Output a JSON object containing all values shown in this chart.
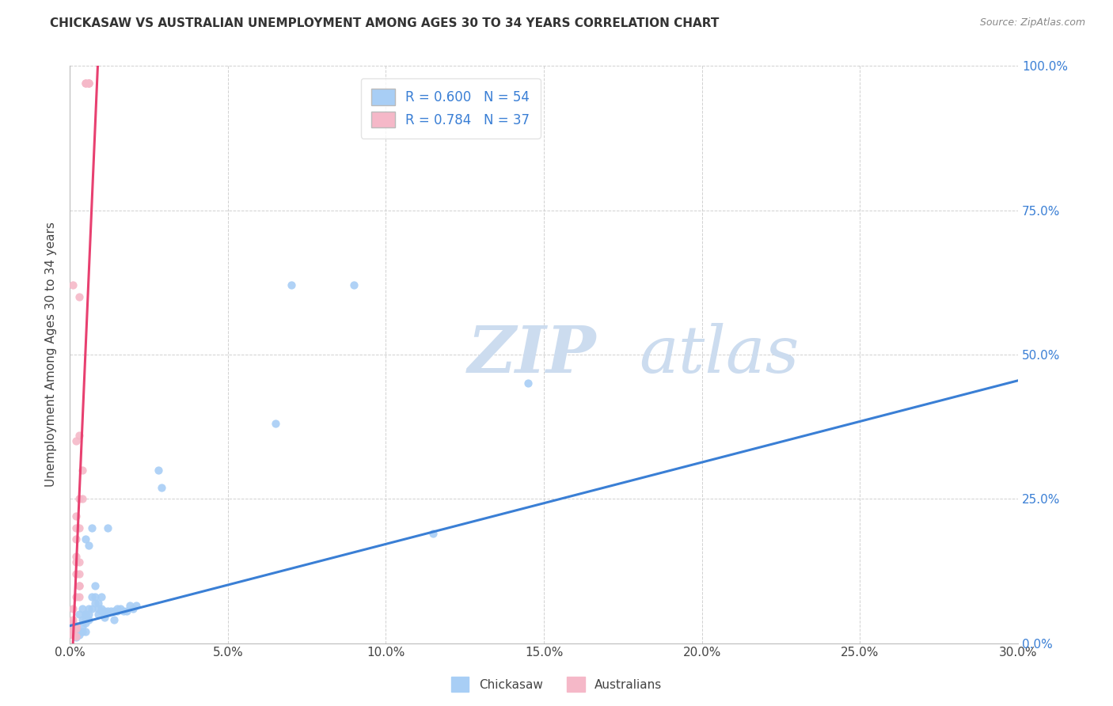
{
  "title": "CHICKASAW VS AUSTRALIAN UNEMPLOYMENT AMONG AGES 30 TO 34 YEARS CORRELATION CHART",
  "source": "Source: ZipAtlas.com",
  "xlabel_ticks": [
    "0.0%",
    "5.0%",
    "10.0%",
    "15.0%",
    "20.0%",
    "25.0%",
    "30.0%"
  ],
  "ylabel_ticks": [
    "0.0%",
    "25.0%",
    "50.0%",
    "75.0%",
    "100.0%"
  ],
  "ylabel_label": "Unemployment Among Ages 30 to 34 years",
  "legend_label1": "Chickasaw",
  "legend_label2": "Australians",
  "R1": "0.600",
  "N1": "54",
  "R2": "0.784",
  "N2": "37",
  "xlim": [
    0.0,
    0.3
  ],
  "ylim": [
    0.0,
    1.0
  ],
  "color_blue": "#a8cef5",
  "color_pink": "#f5b8c8",
  "trendline_blue": "#3a7fd5",
  "trendline_pink": "#e84070",
  "watermark_color": "#ccdcef",
  "blue_scatter": [
    [
      0.001,
      0.02
    ],
    [
      0.002,
      0.015
    ],
    [
      0.002,
      0.01
    ],
    [
      0.003,
      0.02
    ],
    [
      0.003,
      0.015
    ],
    [
      0.003,
      0.05
    ],
    [
      0.004,
      0.02
    ],
    [
      0.004,
      0.04
    ],
    [
      0.004,
      0.03
    ],
    [
      0.004,
      0.06
    ],
    [
      0.005,
      0.035
    ],
    [
      0.005,
      0.05
    ],
    [
      0.005,
      0.02
    ],
    [
      0.005,
      0.04
    ],
    [
      0.005,
      0.18
    ],
    [
      0.005,
      0.05
    ],
    [
      0.006,
      0.17
    ],
    [
      0.006,
      0.05
    ],
    [
      0.006,
      0.06
    ],
    [
      0.006,
      0.04
    ],
    [
      0.007,
      0.2
    ],
    [
      0.007,
      0.06
    ],
    [
      0.007,
      0.08
    ],
    [
      0.008,
      0.07
    ],
    [
      0.008,
      0.08
    ],
    [
      0.008,
      0.1
    ],
    [
      0.009,
      0.05
    ],
    [
      0.009,
      0.07
    ],
    [
      0.009,
      0.06
    ],
    [
      0.01,
      0.08
    ],
    [
      0.01,
      0.06
    ],
    [
      0.01,
      0.055
    ],
    [
      0.011,
      0.045
    ],
    [
      0.011,
      0.055
    ],
    [
      0.012,
      0.2
    ],
    [
      0.012,
      0.055
    ],
    [
      0.013,
      0.055
    ],
    [
      0.014,
      0.055
    ],
    [
      0.014,
      0.04
    ],
    [
      0.015,
      0.06
    ],
    [
      0.015,
      0.055
    ],
    [
      0.016,
      0.06
    ],
    [
      0.017,
      0.055
    ],
    [
      0.018,
      0.055
    ],
    [
      0.019,
      0.065
    ],
    [
      0.02,
      0.06
    ],
    [
      0.021,
      0.065
    ],
    [
      0.028,
      0.3
    ],
    [
      0.029,
      0.27
    ],
    [
      0.065,
      0.38
    ],
    [
      0.07,
      0.62
    ],
    [
      0.09,
      0.62
    ],
    [
      0.115,
      0.19
    ],
    [
      0.145,
      0.45
    ]
  ],
  "pink_scatter": [
    [
      0.001,
      0.02
    ],
    [
      0.001,
      0.04
    ],
    [
      0.001,
      0.035
    ],
    [
      0.001,
      0.06
    ],
    [
      0.002,
      0.22
    ],
    [
      0.002,
      0.08
    ],
    [
      0.002,
      0.15
    ],
    [
      0.002,
      0.18
    ],
    [
      0.002,
      0.2
    ],
    [
      0.002,
      0.14
    ],
    [
      0.002,
      0.12
    ],
    [
      0.003,
      0.1
    ],
    [
      0.003,
      0.14
    ],
    [
      0.003,
      0.12
    ],
    [
      0.003,
      0.1
    ],
    [
      0.003,
      0.08
    ],
    [
      0.003,
      0.36
    ],
    [
      0.003,
      0.2
    ],
    [
      0.004,
      0.3
    ],
    [
      0.004,
      0.25
    ],
    [
      0.005,
      0.97
    ],
    [
      0.005,
      0.97
    ],
    [
      0.006,
      0.97
    ],
    [
      0.006,
      0.97
    ],
    [
      0.006,
      0.97
    ],
    [
      0.002,
      0.03
    ],
    [
      0.002,
      0.03
    ],
    [
      0.002,
      0.025
    ],
    [
      0.001,
      0.03
    ],
    [
      0.001,
      0.025
    ],
    [
      0.001,
      0.015
    ],
    [
      0.001,
      0.015
    ],
    [
      0.002,
      0.012
    ],
    [
      0.003,
      0.6
    ],
    [
      0.002,
      0.35
    ],
    [
      0.003,
      0.25
    ],
    [
      0.001,
      0.62
    ]
  ],
  "blue_trendline_x": [
    0.0,
    0.3
  ],
  "blue_trendline_y": [
    0.03,
    0.455
  ],
  "pink_trendline_x": [
    0.001,
    0.009
  ],
  "pink_trendline_y": [
    0.0,
    1.02
  ]
}
